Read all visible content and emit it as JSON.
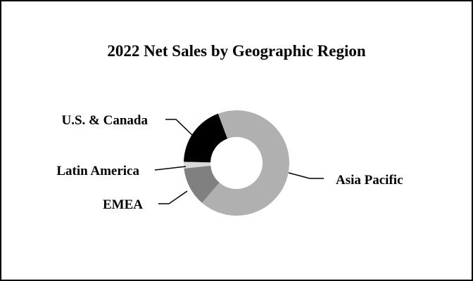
{
  "chart_data": {
    "type": "pie",
    "variant": "donut",
    "title": "2022 Net Sales by Geographic Region",
    "unit": "percent of net sales (estimated)",
    "slices": [
      {
        "label": "U.S. & Canada",
        "value": 19,
        "color": "#000000"
      },
      {
        "label": "Latin America",
        "value": 2,
        "color": "#d9d9d9"
      },
      {
        "label": "EMEA",
        "value": 12,
        "color": "#808080"
      },
      {
        "label": "Asia Pacific",
        "value": 67,
        "color": "#b0b0b0"
      }
    ],
    "legend": "none",
    "data_labels": "category names with leader lines"
  }
}
